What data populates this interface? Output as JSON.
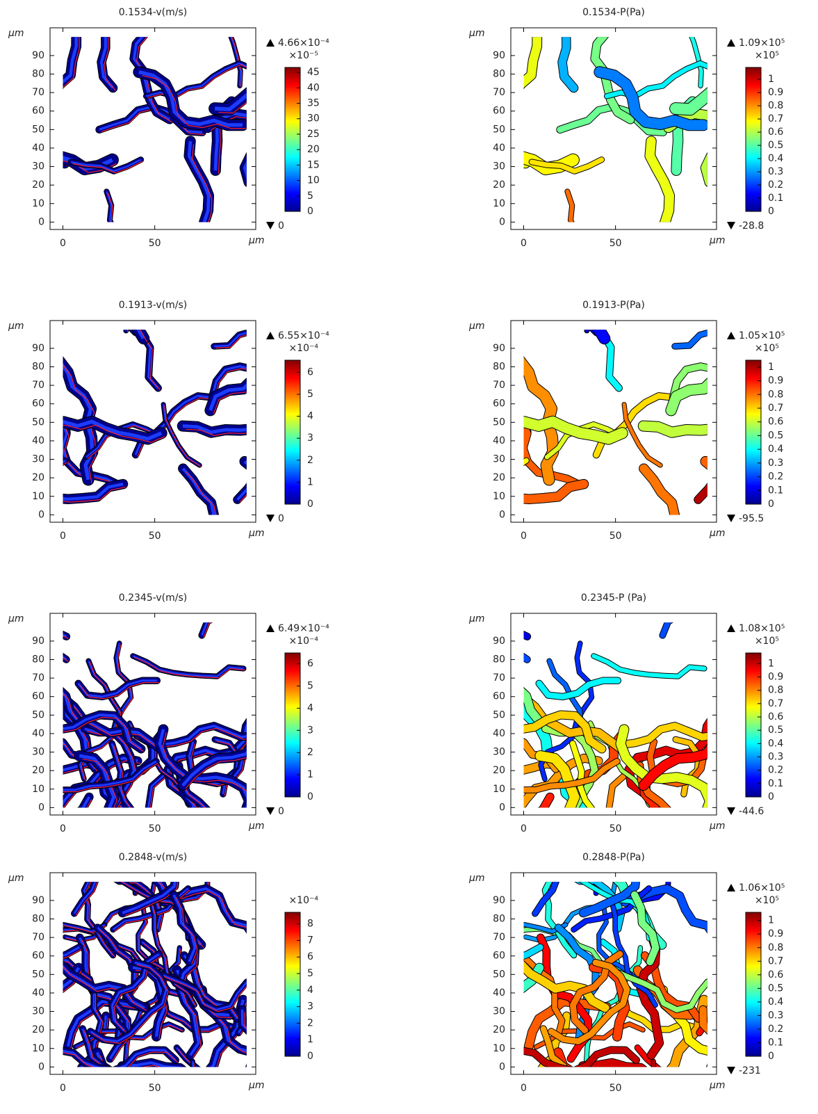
{
  "chart_data": [
    {
      "type": "field",
      "title": "0.1534-v(m/s)",
      "xlabel": "μm",
      "ylabel": "μm",
      "xlim": [
        -7,
        105
      ],
      "ylim": [
        -4,
        105
      ],
      "xticks": [
        0,
        50
      ],
      "yticks": [
        0,
        10,
        20,
        30,
        40,
        50,
        60,
        70,
        80,
        90
      ],
      "colorbar": {
        "clim": [
          0,
          46.6
        ],
        "ticks": [
          0,
          5,
          10,
          15,
          20,
          25,
          30,
          35,
          40,
          45
        ],
        "scale_label": "×10⁻⁵",
        "max": {
          "value": 0.000466,
          "label": "4.66×10⁻⁴"
        },
        "min": 0
      }
    },
    {
      "type": "field",
      "title": "0.1534-P(Pa)",
      "xlabel": "μm",
      "ylabel": "μm",
      "xlim": [
        -7,
        105
      ],
      "ylim": [
        -4,
        105
      ],
      "xticks": [
        0,
        50
      ],
      "yticks": [
        0,
        10,
        20,
        30,
        40,
        50,
        60,
        70,
        80,
        90
      ],
      "colorbar": {
        "clim": [
          0,
          1.09
        ],
        "ticks": [
          0,
          0.1,
          0.2,
          0.3,
          0.4,
          0.5,
          0.6,
          0.7,
          0.8,
          0.9,
          1
        ],
        "scale_label": "×10⁵",
        "max": {
          "value": 109000,
          "label": "1.09×10⁵"
        },
        "min": -28.8
      }
    },
    {
      "type": "field",
      "title": "0.1913-v(m/s)",
      "xlabel": "μm",
      "ylabel": "μm",
      "xlim": [
        -7,
        105
      ],
      "ylim": [
        -4,
        105
      ],
      "xticks": [
        0,
        50
      ],
      "yticks": [
        0,
        10,
        20,
        30,
        40,
        50,
        60,
        70,
        80,
        90
      ],
      "colorbar": {
        "clim": [
          0,
          6.55
        ],
        "ticks": [
          0,
          1,
          2,
          3,
          4,
          5,
          6
        ],
        "scale_label": "×10⁻⁴",
        "max": {
          "value": 0.000655,
          "label": "6.55×10⁻⁴"
        },
        "min": 0
      }
    },
    {
      "type": "field",
      "title": "0.1913-P(Pa)",
      "xlabel": "μm",
      "ylabel": "μm",
      "xlim": [
        -7,
        105
      ],
      "ylim": [
        -4,
        105
      ],
      "xticks": [
        0,
        50
      ],
      "yticks": [
        0,
        10,
        20,
        30,
        40,
        50,
        60,
        70,
        80,
        90
      ],
      "colorbar": {
        "clim": [
          0,
          1.05
        ],
        "ticks": [
          0,
          0.1,
          0.2,
          0.3,
          0.4,
          0.5,
          0.6,
          0.7,
          0.8,
          0.9,
          1
        ],
        "scale_label": "×10⁵",
        "max": {
          "value": 105000,
          "label": "1.05×10⁵"
        },
        "min": -95.5
      }
    },
    {
      "type": "field",
      "title": "0.2345-v(m/s)",
      "xlabel": "μm",
      "ylabel": "μm",
      "xlim": [
        -7,
        105
      ],
      "ylim": [
        -4,
        105
      ],
      "xticks": [
        0,
        50
      ],
      "yticks": [
        0,
        10,
        20,
        30,
        40,
        50,
        60,
        70,
        80,
        90
      ],
      "colorbar": {
        "clim": [
          0,
          6.49
        ],
        "ticks": [
          0,
          1,
          2,
          3,
          4,
          5,
          6
        ],
        "scale_label": "×10⁻⁴",
        "max": {
          "value": 0.000649,
          "label": "6.49×10⁻⁴"
        },
        "min": 0
      }
    },
    {
      "type": "field",
      "title": "0.2345-P (Pa)",
      "xlabel": "μm",
      "ylabel": "μm",
      "xlim": [
        -7,
        105
      ],
      "ylim": [
        -4,
        105
      ],
      "xticks": [
        0,
        50
      ],
      "yticks": [
        0,
        10,
        20,
        30,
        40,
        50,
        60,
        70,
        80,
        90
      ],
      "colorbar": {
        "clim": [
          0,
          1.08
        ],
        "ticks": [
          0,
          0.1,
          0.2,
          0.3,
          0.4,
          0.5,
          0.6,
          0.7,
          0.8,
          0.9,
          1
        ],
        "scale_label": "×10⁵",
        "max": {
          "value": 108000,
          "label": "1.08×10⁵"
        },
        "min": -44.6
      }
    },
    {
      "type": "field",
      "title": "0.2848-v(m/s)",
      "xlabel": "μm",
      "ylabel": "μm",
      "xlim": [
        -7,
        105
      ],
      "ylim": [
        -4,
        105
      ],
      "xticks": [
        0,
        50
      ],
      "yticks": [
        0,
        10,
        20,
        30,
        40,
        50,
        60,
        70,
        80,
        90
      ],
      "colorbar": {
        "clim": [
          0,
          8.7
        ],
        "ticks": [
          0,
          1,
          2,
          3,
          4,
          5,
          6,
          7,
          8
        ],
        "scale_label": "×10⁻⁴"
      }
    },
    {
      "type": "field",
      "title": "0.2848-P(Pa)",
      "xlabel": "μm",
      "ylabel": "μm",
      "xlim": [
        -7,
        105
      ],
      "ylim": [
        -4,
        105
      ],
      "xticks": [
        0,
        50
      ],
      "yticks": [
        0,
        10,
        20,
        30,
        40,
        50,
        60,
        70,
        80,
        90
      ],
      "colorbar": {
        "clim": [
          0,
          1.06
        ],
        "ticks": [
          0,
          0.1,
          0.2,
          0.3,
          0.4,
          0.5,
          0.6,
          0.7,
          0.8,
          0.9,
          1
        ],
        "scale_label": "×10⁵",
        "max": {
          "value": 106000,
          "label": "1.06×10⁵"
        },
        "min": -231
      }
    }
  ]
}
